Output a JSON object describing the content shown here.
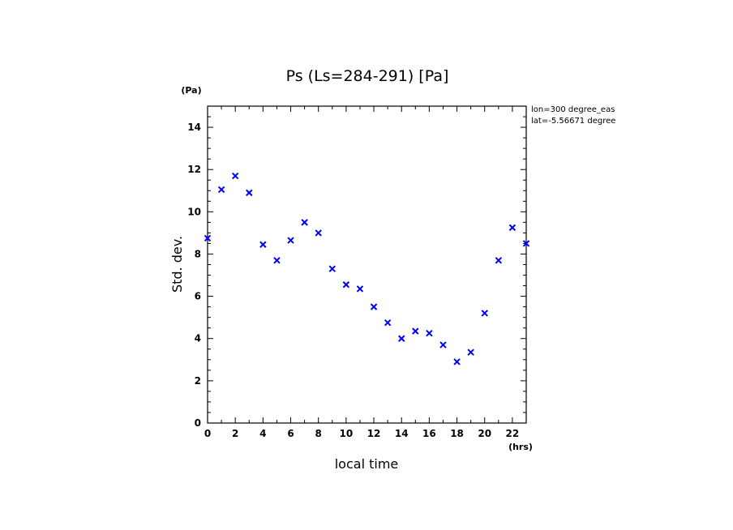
{
  "chart_data": {
    "type": "scatter",
    "title": "Ps (Ls=284-291) [Pa]",
    "xlabel": "local time",
    "ylabel": "Std. dev.",
    "x_unit": "(hrs)",
    "y_unit": "(Pa)",
    "xlim": [
      0,
      23
    ],
    "ylim": [
      0,
      15
    ],
    "x_ticks": [
      0,
      2,
      4,
      6,
      8,
      10,
      12,
      14,
      16,
      18,
      20,
      22
    ],
    "y_ticks": [
      0,
      2,
      4,
      6,
      8,
      10,
      12,
      14
    ],
    "grid": false,
    "marker": "x",
    "marker_color": "#0000ff",
    "annotations": [
      "lon=300 degree_eas",
      "lat=-5.56671 degree"
    ],
    "series": [
      {
        "x": [
          0,
          1,
          2,
          3,
          4,
          5,
          6,
          7,
          8,
          9,
          10,
          11,
          12,
          13,
          14,
          15,
          16,
          17,
          18,
          19,
          20,
          21,
          22,
          23
        ],
        "y": [
          8.75,
          11.05,
          11.7,
          10.9,
          8.45,
          7.7,
          8.65,
          9.5,
          9.0,
          7.3,
          6.55,
          6.35,
          5.5,
          4.75,
          4.0,
          4.35,
          4.25,
          3.7,
          2.9,
          3.35,
          5.2,
          7.7,
          9.25,
          8.5
        ]
      }
    ]
  }
}
